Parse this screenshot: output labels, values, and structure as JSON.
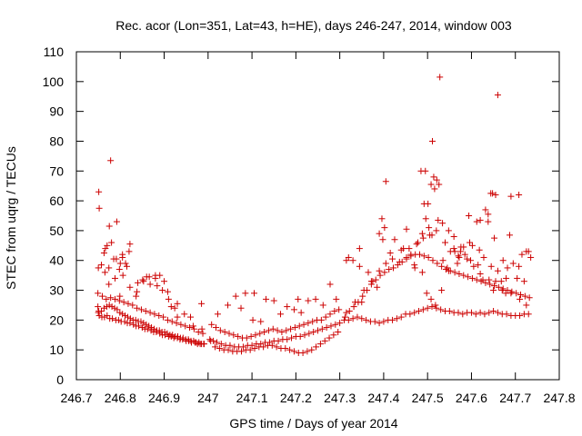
{
  "chart_data": {
    "type": "scatter",
    "title": "Rec. acor (Lon=351, Lat=43, h=HE), days 246-247, 2014, window 003",
    "xlabel": "GPS time / Days of year 2014",
    "ylabel": "STEC from uqrg / TECUs",
    "xlim": [
      246.7,
      247.8
    ],
    "ylim": [
      0,
      110
    ],
    "x_ticks": [
      246.7,
      246.8,
      246.9,
      247,
      247.1,
      247.2,
      247.3,
      247.4,
      247.5,
      247.6,
      247.7,
      247.8
    ],
    "x_tick_labels": [
      "246.7",
      "246.8",
      "246.9",
      "247",
      "247.1",
      "247.2",
      "247.3",
      "247.4",
      "247.5",
      "247.6",
      "247.7",
      "247.8"
    ],
    "y_ticks": [
      0,
      10,
      20,
      30,
      40,
      50,
      60,
      70,
      80,
      90,
      100,
      110
    ],
    "y_tick_labels": [
      "0",
      "10",
      "20",
      "30",
      "40",
      "50",
      "60",
      "70",
      "80",
      "90",
      "100",
      "110"
    ],
    "grid": false,
    "marker": "+",
    "color": "#cc0000",
    "series": [
      {
        "x": [
          246.749,
          246.75,
          246.752,
          246.758,
          246.764,
          246.77,
          246.776,
          246.782,
          246.79,
          246.796,
          246.802,
          246.81,
          246.816,
          246.822,
          246.83,
          246.836,
          246.842,
          246.85,
          246.856,
          246.862,
          246.87,
          246.876,
          246.882,
          246.89,
          246.896,
          246.902,
          246.91,
          246.916,
          246.922,
          246.93,
          246.936,
          246.942,
          246.95,
          246.956,
          246.962,
          246.97,
          246.976,
          246.982,
          246.99,
          246.751,
          246.757,
          246.763,
          246.769,
          246.775,
          246.781,
          246.787,
          246.793,
          246.799,
          246.805,
          246.811,
          246.817,
          246.823,
          246.829,
          246.835,
          246.841,
          246.847,
          246.853,
          246.859,
          246.865,
          246.871,
          246.877,
          246.883,
          246.889,
          246.895,
          246.901,
          246.907,
          246.913,
          246.919,
          246.925,
          246.931,
          246.937,
          246.943,
          246.949,
          246.955,
          246.961,
          246.967,
          246.973,
          246.979,
          246.985,
          246.991,
          246.749,
          246.759,
          246.768,
          246.778,
          246.788,
          246.798,
          246.808,
          246.818,
          246.828,
          246.838,
          246.848,
          246.858,
          246.868,
          246.878,
          246.888,
          246.898,
          246.908,
          246.918,
          246.928,
          246.938,
          246.948,
          246.958,
          246.968,
          246.978,
          246.988,
          246.75,
          246.766,
          246.774,
          246.788,
          246.806,
          246.822,
          246.836,
          246.853,
          246.868,
          246.884,
          246.896,
          246.91,
          246.924,
          246.946,
          246.966,
          246.986,
          246.765,
          246.774,
          246.785,
          246.798,
          246.805,
          246.812,
          246.82,
          246.838,
          246.851,
          246.866,
          246.88,
          246.9,
          246.916,
          246.93,
          247.004,
          247.012,
          247.02,
          247.03,
          247.04,
          247.05,
          247.06,
          247.07,
          247.08,
          247.09,
          247.1,
          247.11,
          247.12,
          247.13,
          247.14,
          247.15,
          247.16,
          247.17,
          247.18,
          247.19,
          247.2,
          247.21,
          247.22,
          247.23,
          247.24,
          247.25,
          247.26,
          247.27,
          247.28,
          247.29,
          247.3,
          247.006,
          247.016,
          247.026,
          247.036,
          247.046,
          247.056,
          247.066,
          247.076,
          247.086,
          247.096,
          247.106,
          247.116,
          247.126,
          247.136,
          247.146,
          247.156,
          247.166,
          247.176,
          247.186,
          247.196,
          247.206,
          247.216,
          247.226,
          247.236,
          247.246,
          247.256,
          247.266,
          247.276,
          247.286,
          247.296,
          247.008,
          247.018,
          247.028,
          247.038,
          247.048,
          247.058,
          247.068,
          247.078,
          247.088,
          247.098,
          247.108,
          247.118,
          247.128,
          247.138,
          247.148,
          247.158,
          247.168,
          247.178,
          247.188,
          247.198,
          247.208,
          247.218,
          247.228,
          247.238,
          247.248,
          247.258,
          247.268,
          247.278,
          247.288,
          247.298,
          247.022,
          247.045,
          247.063,
          247.075,
          247.085,
          247.102,
          247.12,
          247.132,
          247.15,
          247.165,
          247.18,
          247.196,
          247.212,
          247.228,
          247.245,
          247.262,
          247.278,
          247.292,
          247.31,
          247.32,
          247.33,
          247.34,
          247.35,
          247.36,
          247.37,
          247.38,
          247.39,
          247.4,
          247.41,
          247.42,
          247.43,
          247.44,
          247.45,
          247.46,
          247.47,
          247.48,
          247.49,
          247.5,
          247.51,
          247.52,
          247.53,
          247.54,
          247.55,
          247.56,
          247.57,
          247.58,
          247.59,
          247.6,
          247.61,
          247.62,
          247.63,
          247.64,
          247.65,
          247.66,
          247.67,
          247.68,
          247.69,
          247.7,
          247.71,
          247.72,
          247.73,
          247.312,
          247.322,
          247.332,
          247.342,
          247.352,
          247.362,
          247.372,
          247.382,
          247.392,
          247.402,
          247.412,
          247.422,
          247.432,
          247.442,
          247.452,
          247.462,
          247.472,
          247.482,
          247.492,
          247.502,
          247.512,
          247.522,
          247.532,
          247.542,
          247.552,
          247.562,
          247.572,
          247.582,
          247.592,
          247.602,
          247.612,
          247.622,
          247.632,
          247.642,
          247.652,
          247.662,
          247.672,
          247.682,
          247.692,
          247.702,
          247.712,
          247.722,
          247.732,
          247.315,
          247.335,
          247.355,
          247.375,
          247.39,
          247.405,
          247.42,
          247.44,
          247.458,
          247.475,
          247.49,
          247.505,
          247.52,
          247.54,
          247.56,
          247.575,
          247.59,
          247.605,
          247.62,
          247.64,
          247.655,
          247.67,
          247.69,
          247.71,
          247.725,
          247.32,
          247.345,
          247.365,
          247.385,
          247.398,
          247.415,
          247.436,
          247.452,
          247.47,
          247.488,
          247.498,
          247.508,
          247.518,
          247.532,
          247.548,
          247.568,
          247.585,
          247.598,
          247.615,
          247.628,
          247.645,
          247.66,
          247.678,
          247.695,
          247.715,
          247.73,
          247.33,
          247.35,
          247.372,
          247.39,
          247.396,
          247.402,
          247.425,
          247.445,
          247.462,
          247.478,
          247.488,
          247.496,
          247.51,
          247.524,
          247.535,
          247.552,
          247.57,
          247.582,
          247.602,
          247.618,
          247.632,
          247.644,
          247.65,
          247.668,
          247.682,
          247.708,
          247.485,
          247.492,
          247.503,
          247.508,
          247.514,
          247.526,
          247.534,
          247.548,
          247.56,
          247.576,
          247.594,
          247.612,
          247.626,
          247.638,
          247.652,
          247.672,
          247.69,
          247.704,
          247.72
        ],
        "y": [
          24.5,
          22.5,
          21.5,
          21.0,
          21.0,
          21.5,
          20.5,
          20.5,
          20.0,
          20.0,
          19.5,
          19.5,
          19.0,
          19.0,
          18.5,
          18.0,
          18.0,
          17.5,
          17.0,
          17.0,
          16.5,
          16.0,
          16.0,
          15.5,
          15.0,
          15.0,
          14.5,
          14.5,
          14.0,
          14.0,
          13.5,
          13.5,
          13.0,
          13.0,
          12.5,
          12.5,
          12.0,
          12.0,
          12.0,
          23.0,
          23.0,
          24.0,
          24.5,
          25.0,
          24.5,
          24.0,
          23.5,
          22.5,
          22.0,
          21.5,
          21.0,
          20.5,
          20.0,
          20.0,
          19.5,
          19.5,
          19.0,
          18.5,
          18.0,
          17.5,
          17.0,
          16.5,
          16.5,
          16.0,
          16.0,
          15.5,
          15.0,
          15.0,
          14.5,
          14.5,
          14.0,
          14.0,
          13.5,
          13.5,
          13.0,
          13.0,
          12.5,
          12.5,
          12.0,
          12.0,
          29.0,
          28.0,
          27.0,
          27.5,
          27.0,
          26.5,
          26.0,
          25.5,
          25.0,
          24.0,
          23.5,
          23.0,
          22.5,
          22.0,
          21.5,
          21.0,
          20.0,
          19.5,
          19.0,
          18.5,
          18.0,
          17.5,
          17.0,
          16.0,
          15.5,
          37.5,
          44.0,
          37.5,
          34.0,
          35.0,
          31.0,
          28.0,
          33.0,
          32.0,
          31.5,
          30.0,
          27.0,
          24.0,
          22.0,
          18.0,
          17.0,
          36.0,
          32.0,
          40.5,
          37.0,
          41.0,
          39.0,
          43.0,
          29.5,
          33.5,
          34.5,
          34.0,
          33.0,
          24.5,
          21.0,
          13.5,
          13.0,
          12.5,
          12.0,
          11.5,
          11.5,
          11.0,
          11.0,
          11.0,
          11.5,
          11.5,
          12.0,
          12.0,
          12.5,
          12.5,
          13.0,
          13.0,
          13.5,
          13.5,
          14.0,
          14.5,
          14.5,
          15.0,
          15.5,
          16.0,
          16.5,
          17.0,
          17.5,
          18.0,
          18.5,
          19.0,
          13.0,
          11.0,
          10.5,
          10.0,
          10.0,
          9.5,
          9.5,
          9.5,
          10.0,
          10.0,
          10.5,
          11.0,
          11.0,
          11.5,
          11.5,
          11.0,
          10.5,
          10.5,
          10.0,
          9.5,
          9.0,
          9.0,
          9.5,
          10.0,
          11.0,
          12.0,
          13.0,
          14.0,
          15.0,
          16.0,
          18.5,
          17.5,
          16.5,
          16.0,
          15.5,
          15.0,
          14.5,
          14.0,
          14.0,
          14.5,
          15.0,
          15.5,
          16.0,
          16.5,
          17.0,
          16.5,
          16.0,
          16.5,
          17.0,
          17.5,
          18.0,
          18.5,
          19.0,
          19.5,
          20.0,
          20.0,
          21.0,
          22.0,
          23.0,
          23.5,
          22.0,
          25.0,
          28.0,
          24.0,
          29.0,
          20.0,
          19.5,
          27.0,
          26.5,
          22.0,
          24.5,
          23.5,
          22.5,
          26.5,
          27.0,
          25.0,
          32.0,
          27.0,
          20.0,
          20.0,
          20.5,
          21.0,
          20.5,
          20.0,
          19.5,
          19.5,
          19.0,
          19.5,
          20.0,
          20.0,
          20.5,
          21.0,
          22.0,
          22.0,
          22.5,
          23.0,
          23.5,
          24.0,
          24.5,
          24.0,
          23.5,
          23.0,
          23.0,
          22.5,
          22.5,
          22.0,
          22.5,
          22.5,
          22.0,
          22.5,
          22.0,
          22.5,
          23.0,
          22.5,
          22.0,
          22.0,
          21.5,
          21.5,
          21.5,
          22.0,
          22.0,
          21.0,
          23.0,
          24.5,
          26.0,
          28.0,
          30.0,
          32.0,
          33.5,
          35.0,
          36.0,
          37.0,
          37.5,
          38.5,
          39.5,
          40.5,
          41.5,
          42.0,
          42.0,
          41.5,
          41.0,
          40.0,
          39.0,
          38.0,
          37.0,
          36.5,
          36.0,
          35.5,
          35.0,
          34.5,
          34.0,
          33.5,
          33.0,
          32.5,
          32.0,
          31.5,
          31.0,
          30.5,
          30.0,
          29.5,
          29.0,
          28.5,
          28.0,
          27.5,
          22.5,
          26.0,
          30.0,
          33.0,
          36.5,
          39.0,
          40.5,
          43.5,
          44.0,
          45.5,
          47.5,
          48.5,
          50.0,
          46.0,
          44.0,
          43.0,
          40.5,
          38.0,
          35.5,
          33.5,
          33.0,
          30.0,
          29.0,
          27.0,
          25.0,
          41.0,
          38.0,
          36.0,
          31.0,
          47.0,
          42.5,
          39.5,
          41.0,
          38.5,
          36.0,
          29.0,
          27.0,
          25.0,
          30.0,
          36.5,
          39.0,
          42.0,
          40.0,
          38.5,
          41.0,
          38.0,
          36.5,
          29.0,
          39.0,
          42.0,
          43.0,
          40.0,
          26.0,
          33.0,
          49.0,
          54.0,
          51.0,
          47.0,
          44.0,
          42.0,
          46.0,
          49.0,
          54.0,
          48.5,
          53.5,
          40.0,
          43.0,
          41.5,
          44.5,
          45.0,
          43.5,
          57.0,
          62.5,
          30.0,
          33.0,
          37.5,
          38.0,
          70.0,
          59.0,
          51.0,
          65.5,
          68.0,
          65.5,
          52.5,
          50.0,
          48.0,
          44.5,
          55.0,
          53.0,
          33.5,
          55.5,
          47.5,
          40.0,
          61.5,
          34.0,
          33.0
        ]
      },
      {
        "name": "",
        "x": [
          246.751,
          246.752,
          246.757,
          246.763,
          246.77,
          246.775,
          246.778,
          246.78,
          246.791,
          246.792,
          246.8,
          246.799,
          246.805,
          246.815,
          246.822,
          246.84,
          246.86,
          246.88,
          246.89,
          246.908,
          246.93,
          246.96,
          246.985,
          247.105,
          247.205,
          247.315,
          247.345,
          247.405,
          247.452,
          247.471,
          247.495,
          247.501,
          247.511,
          247.516,
          247.521,
          247.528,
          247.545,
          247.562,
          247.572,
          247.596,
          247.62,
          247.638,
          247.648,
          247.655,
          247.66,
          247.679,
          247.687,
          247.708,
          247.725,
          247.735
        ],
        "y": [
          63.0,
          57.5,
          38.5,
          42.5,
          45.0,
          51.5,
          73.5,
          46.0,
          40.5,
          53.0,
          39.0,
          28.0,
          42.0,
          38.0,
          45.5,
          32.5,
          34.5,
          35.0,
          35.0,
          29.5,
          25.5,
          21.0,
          25.5,
          29.0,
          27.0,
          40.0,
          44.0,
          66.5,
          50.5,
          37.5,
          70.0,
          59.0,
          80.0,
          64.0,
          67.0,
          101.5,
          37.5,
          43.0,
          41.0,
          46.0,
          53.5,
          53.0,
          62.5,
          62.0,
          95.5,
          34.0,
          48.5,
          62.0,
          43.0,
          41.0
        ]
      }
    ]
  }
}
